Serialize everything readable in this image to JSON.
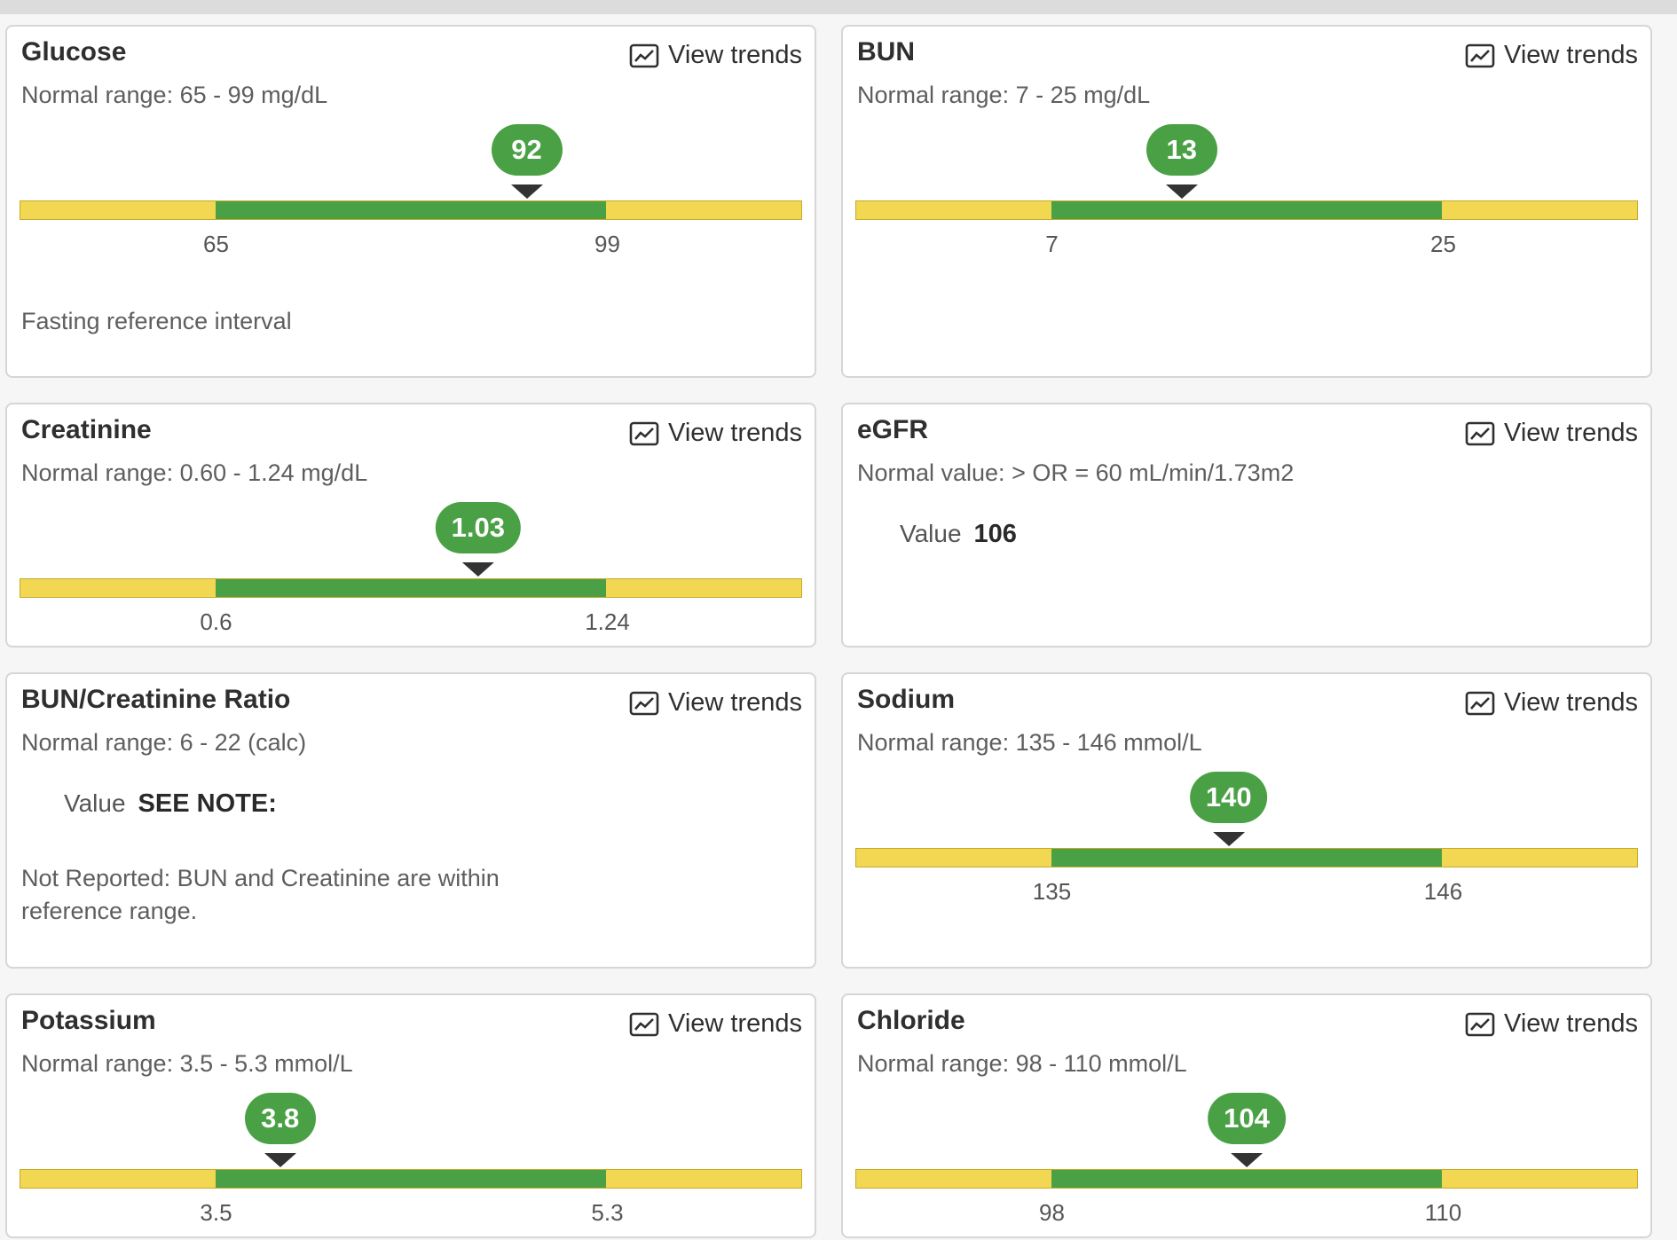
{
  "trends_label": "View trends",
  "value_label": "Value",
  "colors": {
    "normal": "#4aa145",
    "out_of_range": "#f2d752",
    "marker": "#333333"
  },
  "cards": {
    "glucose": {
      "title": "Glucose",
      "range": "Normal range: 65 - 99 mg/dL",
      "value": "92",
      "low": "65",
      "high": "99",
      "position_fraction": 0.648,
      "note": "Fasting reference interval"
    },
    "bun": {
      "title": "BUN",
      "range": "Normal range: 7 - 25 mg/dL",
      "value": "13",
      "low": "7",
      "high": "25",
      "position_fraction": 0.417
    },
    "creatinine": {
      "title": "Creatinine",
      "range": "Normal range: 0.60 - 1.24 mg/dL",
      "value": "1.03",
      "low": "0.6",
      "high": "1.24",
      "position_fraction": 0.586
    },
    "egfr": {
      "title": "eGFR",
      "range": "Normal value: > OR = 60 mL/min/1.73m2",
      "value": "106"
    },
    "bun_creatinine_ratio": {
      "title": "BUN/Creatinine Ratio",
      "range": "Normal range: 6 - 22 (calc)",
      "value": "SEE NOTE:",
      "note_line1": "Not Reported: BUN and Creatinine are within",
      "note_line2": "reference range."
    },
    "sodium": {
      "title": "Sodium",
      "range": "Normal range: 135 - 146 mmol/L",
      "value": "140",
      "low": "135",
      "high": "146",
      "position_fraction": 0.477
    },
    "potassium": {
      "title": "Potassium",
      "range": "Normal range: 3.5 - 5.3 mmol/L",
      "value": "3.8",
      "low": "3.5",
      "high": "5.3",
      "position_fraction": 0.333
    },
    "chloride": {
      "title": "Chloride",
      "range": "Normal range: 98 - 110 mmol/L",
      "value": "104",
      "low": "98",
      "high": "110",
      "position_fraction": 0.5
    }
  }
}
